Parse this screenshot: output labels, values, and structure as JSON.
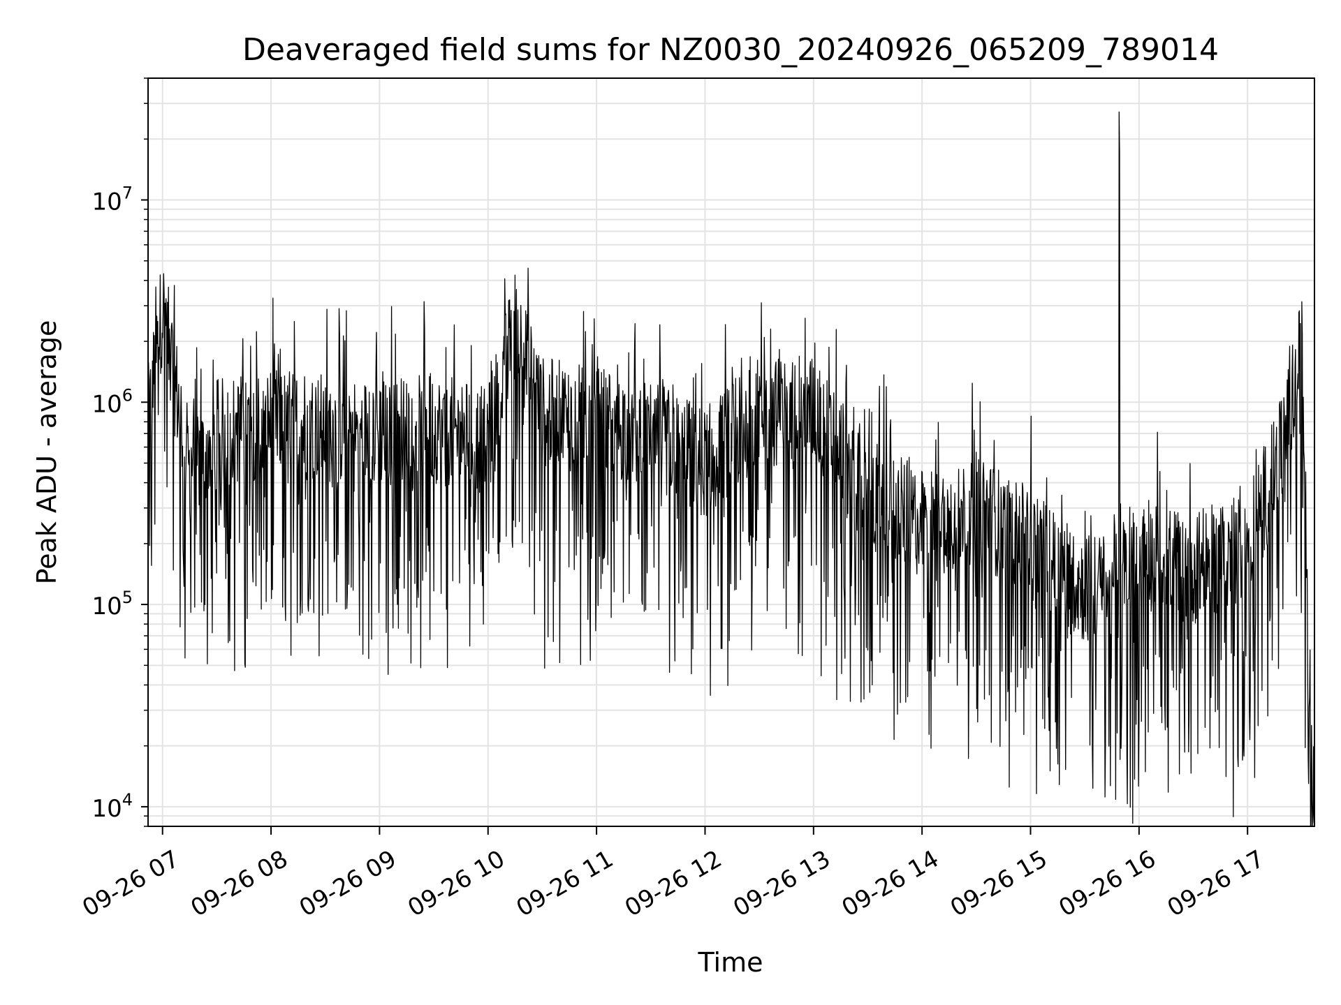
{
  "colors": {
    "line": "#000000",
    "grid": "#e3e3e3",
    "axes": "#000000",
    "background": "#ffffff"
  },
  "chart_data": {
    "type": "line",
    "title": "Deaveraged field sums for NZ0030_20240926_065209_789014",
    "xlabel": "Time",
    "ylabel": "Peak ADU - average",
    "yscale": "log",
    "ylim": [
      8000,
      40000000
    ],
    "xlim": [
      "2024-09-26 06:52",
      "2024-09-26 17:37"
    ],
    "grid": true,
    "x_tick_labels": [
      "09-26 07",
      "09-26 08",
      "09-26 09",
      "09-26 10",
      "09-26 11",
      "09-26 12",
      "09-26 13",
      "09-26 14",
      "09-26 15",
      "09-26 16",
      "09-26 17"
    ],
    "y_tick_labels": [
      {
        "base": "10",
        "exp": "4",
        "value": 10000
      },
      {
        "base": "10",
        "exp": "5",
        "value": 100000
      },
      {
        "base": "10",
        "exp": "6",
        "value": 1000000
      },
      {
        "base": "10",
        "exp": "7",
        "value": 10000000
      }
    ],
    "series": [
      {
        "x": [
          "2024-09-26 06:52",
          "2024-09-26 07:00",
          "2024-09-26 07:15",
          "2024-09-26 07:30",
          "2024-09-26 08:00",
          "2024-09-26 08:30",
          "2024-09-26 09:00",
          "2024-09-26 09:30",
          "2024-09-26 10:00",
          "2024-09-26 10:15",
          "2024-09-26 10:30",
          "2024-09-26 11:00",
          "2024-09-26 11:30",
          "2024-09-26 12:00",
          "2024-09-26 12:30",
          "2024-09-26 13:00",
          "2024-09-26 13:30",
          "2024-09-26 14:00",
          "2024-09-26 14:30",
          "2024-09-26 15:00",
          "2024-09-26 15:30",
          "2024-09-26 15:49",
          "2024-09-26 16:00",
          "2024-09-26 16:30",
          "2024-09-26 17:00",
          "2024-09-26 17:20",
          "2024-09-26 17:30",
          "2024-09-26 17:36"
        ],
        "y": [
          800000,
          3000000,
          450000,
          700000,
          800000,
          750000,
          700000,
          750000,
          650000,
          2400000,
          900000,
          800000,
          700000,
          500000,
          900000,
          900000,
          350000,
          250000,
          300000,
          200000,
          120000,
          27000000,
          180000,
          150000,
          200000,
          600000,
          1800000,
          11000
        ]
      }
    ]
  }
}
